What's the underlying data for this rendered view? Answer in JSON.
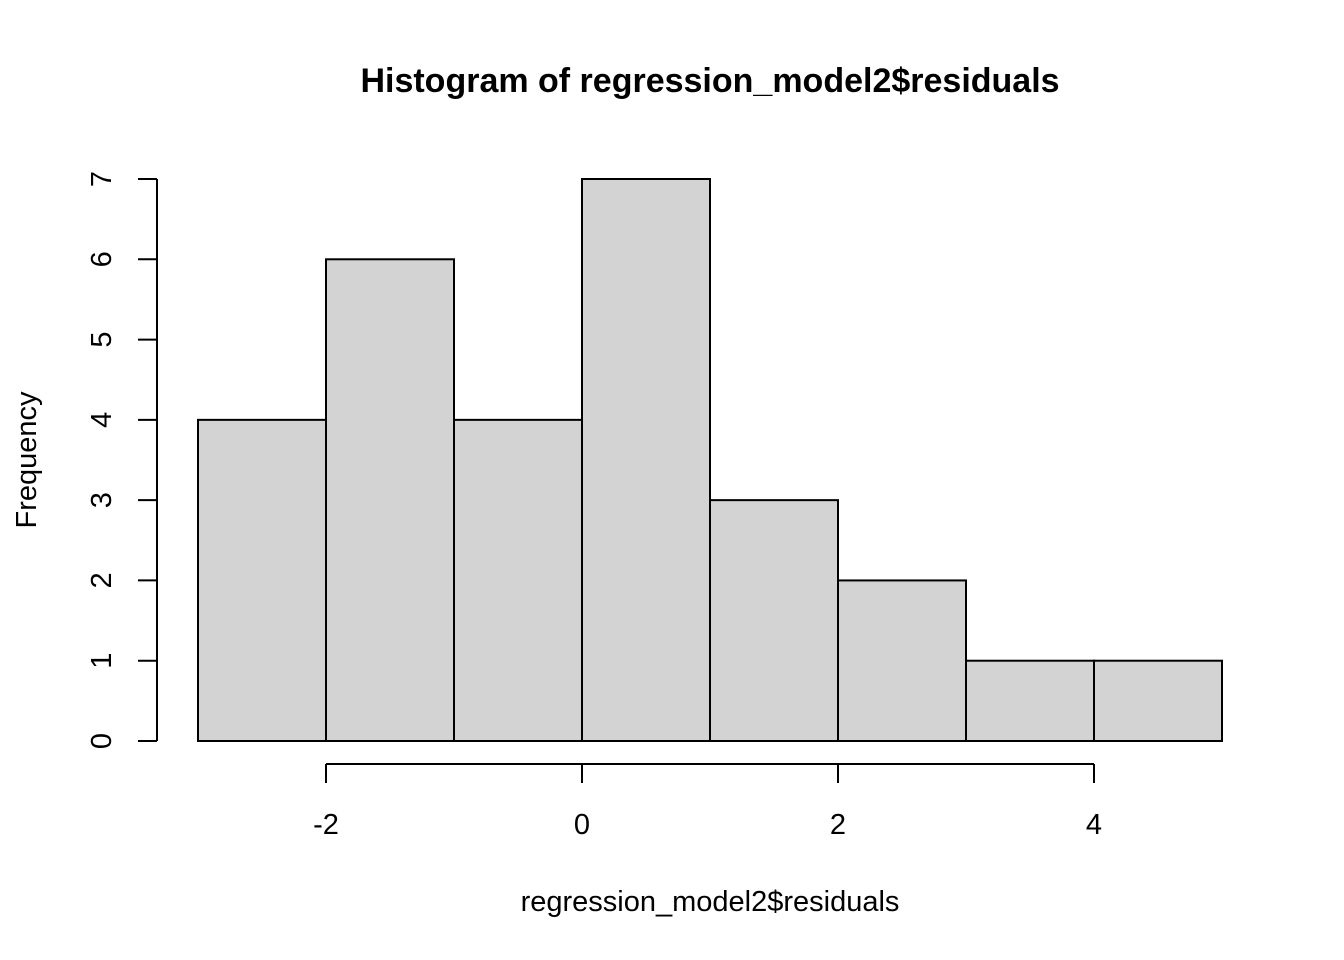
{
  "chart_data": {
    "type": "bar",
    "subtype": "histogram",
    "title": "Histogram of regression_model2$residuals",
    "xlabel": "regression_model2$residuals",
    "ylabel": "Frequency",
    "bins": [
      {
        "start": -3,
        "end": -2,
        "count": 4
      },
      {
        "start": -2,
        "end": -1,
        "count": 6
      },
      {
        "start": -1,
        "end": 0,
        "count": 4
      },
      {
        "start": 0,
        "end": 1,
        "count": 7
      },
      {
        "start": 1,
        "end": 2,
        "count": 3
      },
      {
        "start": 2,
        "end": 3,
        "count": 2
      },
      {
        "start": 3,
        "end": 4,
        "count": 1
      },
      {
        "start": 4,
        "end": 5,
        "count": 1
      }
    ],
    "xlim": [
      -3,
      5
    ],
    "ylim": [
      0,
      7
    ],
    "x_ticks": [
      -2,
      0,
      2,
      4
    ],
    "x_tick_labels": [
      "-2",
      "0",
      "2",
      "4"
    ],
    "y_ticks": [
      0,
      1,
      2,
      3,
      4,
      5,
      6,
      7
    ],
    "y_tick_labels": [
      "0",
      "1",
      "2",
      "3",
      "4",
      "5",
      "6",
      "7"
    ],
    "bar_fill": "#d3d3d3",
    "bar_stroke": "#000000",
    "grid": false,
    "legend": "none"
  }
}
